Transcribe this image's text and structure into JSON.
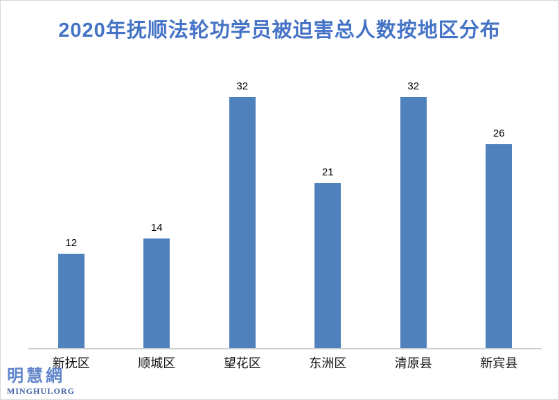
{
  "page": {
    "background": "#FFFFFF",
    "border_color": "#D6D6D6"
  },
  "title": {
    "text": "2020年抚顺法轮功学员被迫害总人数按地区分布",
    "color": "#4573C6"
  },
  "logo": {
    "cjk": "明慧網",
    "cjk_color": "#6286CB",
    "latin": "MINGHUI.ORG",
    "latin_color": "#3E61A8"
  },
  "chart_data": {
    "type": "bar",
    "title": "2020年抚顺法轮功学员被迫害总人数按地区分布",
    "categories": [
      "新抚区",
      "顺城区",
      "望花区",
      "东洲区",
      "清原县",
      "新宾县"
    ],
    "values": [
      12,
      14,
      32,
      21,
      32,
      26
    ],
    "data_labels": [
      12,
      14,
      32,
      21,
      32,
      26
    ],
    "xlabel": "",
    "ylabel": "",
    "ylim": [
      0,
      35
    ],
    "grid": false,
    "legend": false,
    "bar_color": "#4F81BD",
    "value_label_color": "#000000",
    "axis_line_color": "#C9CED3"
  }
}
